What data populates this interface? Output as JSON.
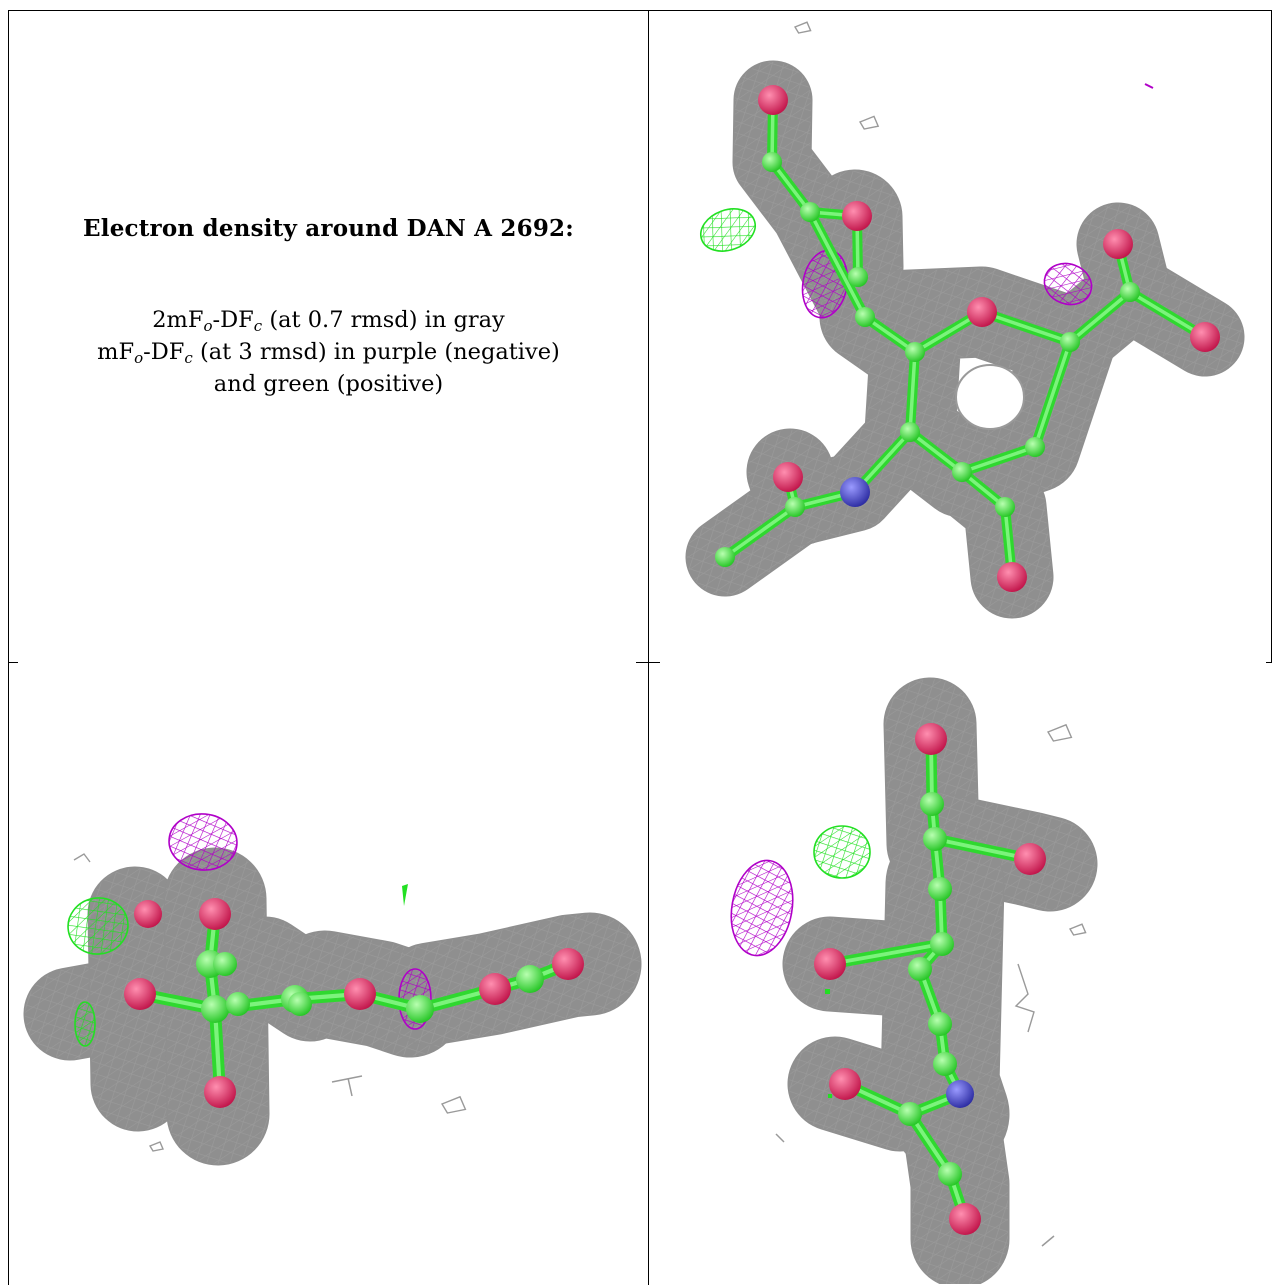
{
  "caption": {
    "title": "Electron density around DAN A 2692:",
    "line1": {
      "pre": "2mF",
      "sub1": "o",
      "mid": "-DF",
      "sub2": "c",
      "post": " (at 0.7 rmsd) in gray"
    },
    "line2": {
      "pre": "mF",
      "sub1": "o",
      "mid": "-DF",
      "sub2": "c",
      "post": " (at 3 rmsd) in purple (negative)"
    },
    "line3": "and green (positive)"
  },
  "colors": {
    "map_2fofc": "#9a9a9a",
    "map_fofc_negative": "#b000c8",
    "map_fofc_positive": "#22e022",
    "carbon": "#3ef03e",
    "oxygen": "#e0245e",
    "nitrogen": "#3a3ac8",
    "rule": "#000000"
  },
  "views": [
    "view-top",
    "view-side",
    "view-end"
  ]
}
